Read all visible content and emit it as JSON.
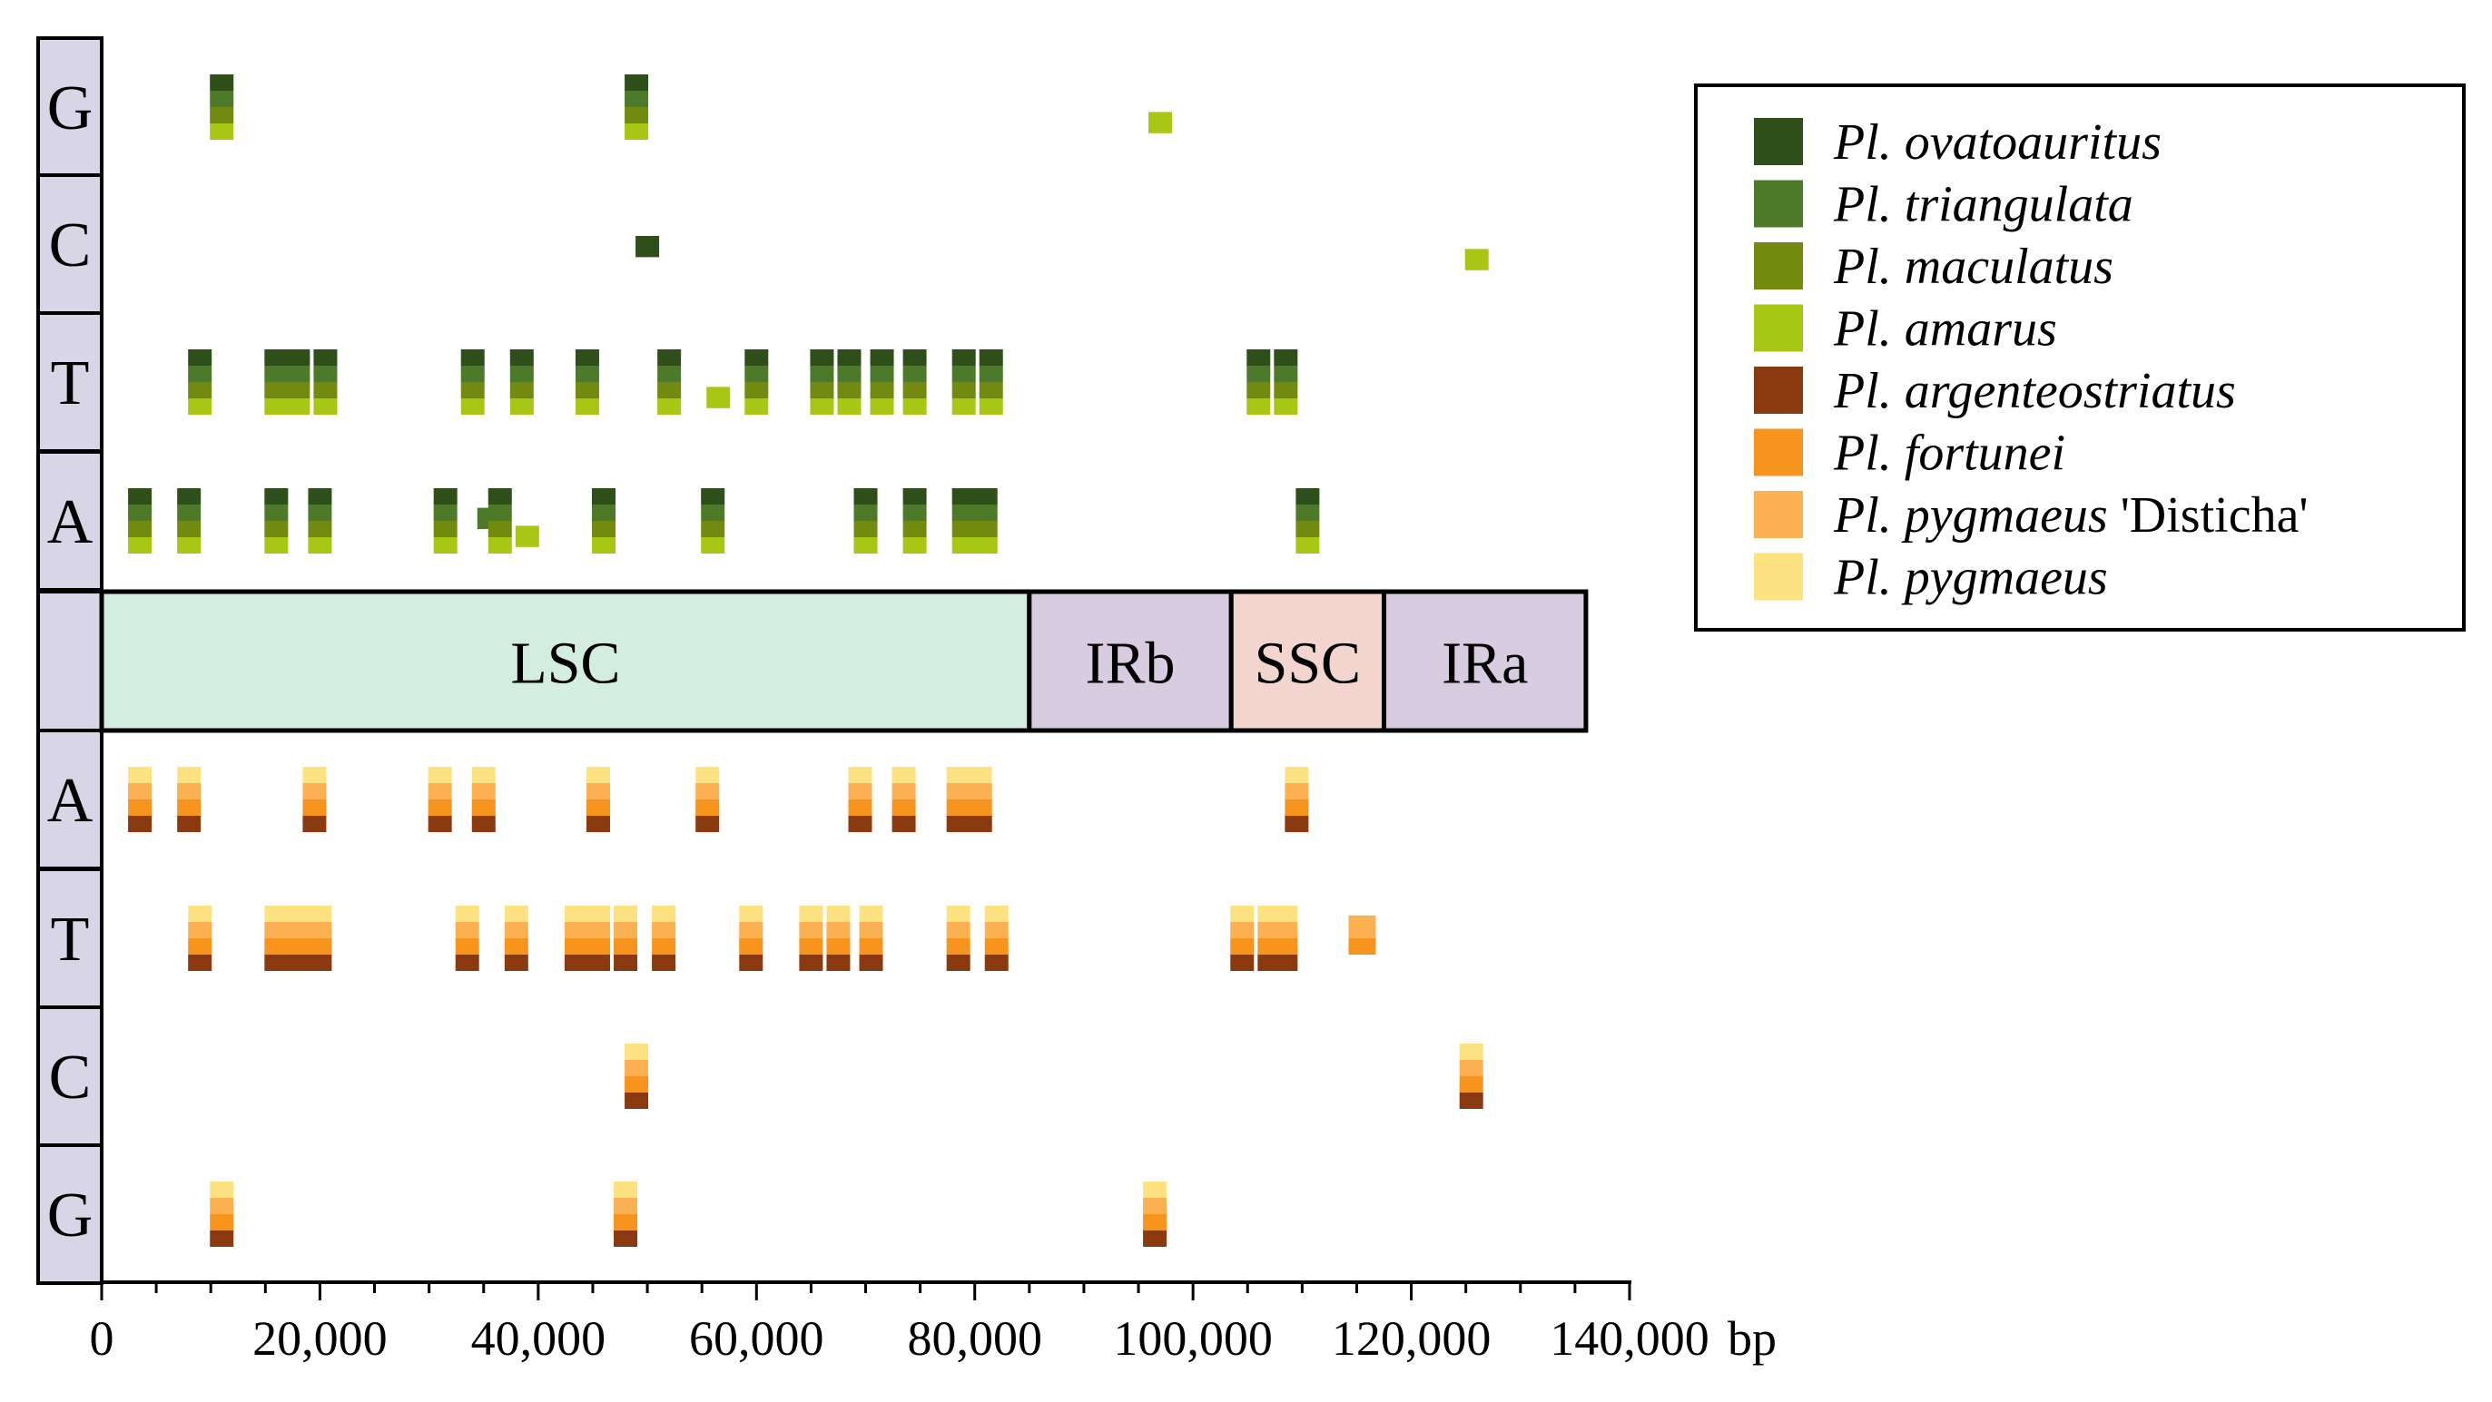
{
  "chart_data": {
    "type": "heatmap",
    "title": "",
    "x_unit": "bp",
    "x_ticks": [
      0,
      20000,
      40000,
      60000,
      80000,
      100000,
      120000,
      140000
    ],
    "x_tick_labels": [
      "0",
      "20,000",
      "40,000",
      "60,000",
      "80,000",
      "100,000",
      "120,000",
      "140,000"
    ],
    "x_range": [
      0,
      140000
    ],
    "regions": [
      {
        "label": "LSC",
        "start": 0,
        "end": 85000,
        "color": "#d4ede1"
      },
      {
        "label": "IRb",
        "start": 85000,
        "end": 103500,
        "color": "#d8cde0"
      },
      {
        "label": "SSC",
        "start": 103500,
        "end": 117500,
        "color": "#f2d5cf"
      },
      {
        "label": "IRa",
        "start": 117500,
        "end": 136000,
        "color": "#d8cde0"
      }
    ],
    "row_labels_upper": [
      "G",
      "C",
      "T",
      "A"
    ],
    "row_labels_lower": [
      "A",
      "T",
      "C",
      "G"
    ],
    "legend": [
      {
        "name": "Pl. ovatoauritus",
        "suffix": "",
        "color": "#2e4f1a"
      },
      {
        "name": "Pl. triangulata",
        "suffix": "",
        "color": "#4d7a29"
      },
      {
        "name": "Pl. maculatus",
        "suffix": "",
        "color": "#738a10"
      },
      {
        "name": "Pl. amarus",
        "suffix": "",
        "color": "#a8c614"
      },
      {
        "name": "Pl. argenteostriatus",
        "suffix": "",
        "color": "#8b3a0f"
      },
      {
        "name": "Pl. fortunei",
        "suffix": "",
        "color": "#f7941d"
      },
      {
        "name": "Pl. pygmaeus",
        "suffix": " 'Disticha'",
        "color": "#fbb152"
      },
      {
        "name": "Pl. pygmaeus",
        "suffix": "",
        "color": "#fde281"
      }
    ],
    "sites_upper": {
      "G": [
        [
          11000,
          4
        ],
        [
          49000,
          4
        ],
        [
          97000,
          1
        ]
      ],
      "C": [
        [
          50000,
          -1
        ],
        [
          126000,
          1
        ]
      ],
      "T": [
        [
          9000,
          4
        ],
        [
          16000,
          4
        ],
        [
          18000,
          4
        ],
        [
          20500,
          4
        ],
        [
          34000,
          4
        ],
        [
          38500,
          4
        ],
        [
          44500,
          4
        ],
        [
          52000,
          4
        ],
        [
          56500,
          1
        ],
        [
          60000,
          4
        ],
        [
          66000,
          4
        ],
        [
          68500,
          4
        ],
        [
          71500,
          4
        ],
        [
          74500,
          4
        ],
        [
          79000,
          4
        ],
        [
          81500,
          4
        ],
        [
          106000,
          4
        ],
        [
          108500,
          4
        ]
      ],
      "A": [
        [
          3500,
          4
        ],
        [
          8000,
          4
        ],
        [
          16000,
          4
        ],
        [
          20000,
          4
        ],
        [
          31500,
          4
        ],
        [
          35500,
          -2
        ],
        [
          36500,
          4
        ],
        [
          39000,
          1
        ],
        [
          46000,
          4
        ],
        [
          56000,
          4
        ],
        [
          70000,
          4
        ],
        [
          74500,
          4
        ],
        [
          79000,
          4
        ],
        [
          81000,
          4
        ],
        [
          110500,
          4
        ]
      ]
    },
    "sites_lower": {
      "A": [
        [
          3500,
          4
        ],
        [
          8000,
          4
        ],
        [
          19500,
          4
        ],
        [
          31000,
          4
        ],
        [
          35000,
          4
        ],
        [
          45500,
          4
        ],
        [
          55500,
          4
        ],
        [
          69500,
          4
        ],
        [
          73500,
          4
        ],
        [
          78500,
          4
        ],
        [
          80500,
          4
        ],
        [
          109500,
          4
        ]
      ],
      "T": [
        [
          9000,
          4
        ],
        [
          16000,
          4
        ],
        [
          18000,
          4
        ],
        [
          20000,
          4
        ],
        [
          33500,
          4
        ],
        [
          38000,
          4
        ],
        [
          43500,
          4
        ],
        [
          45500,
          4
        ],
        [
          48000,
          4
        ],
        [
          51500,
          4
        ],
        [
          59500,
          4
        ],
        [
          65000,
          4
        ],
        [
          67500,
          4
        ],
        [
          70500,
          4
        ],
        [
          78500,
          4
        ],
        [
          82000,
          4
        ],
        [
          104500,
          4
        ],
        [
          107000,
          4
        ],
        [
          108500,
          4
        ],
        [
          115500,
          -3
        ]
      ],
      "C": [
        [
          49000,
          4
        ],
        [
          125500,
          4
        ]
      ],
      "G": [
        [
          11000,
          4
        ],
        [
          48000,
          4
        ],
        [
          96500,
          4
        ]
      ]
    }
  }
}
